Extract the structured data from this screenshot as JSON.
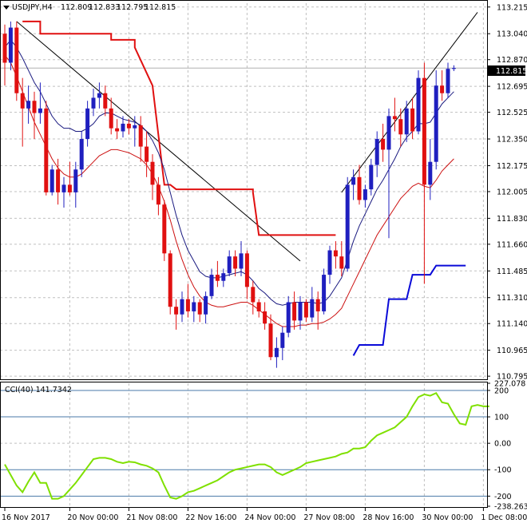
{
  "colors": {
    "background": "#ffffff",
    "grid": "#c0c0c0",
    "frame": "#000000",
    "bull_candle": "#1f1fbf",
    "bear_candle": "#e01010",
    "fast_ma": "#1a1a80",
    "slow_ma": "#cc1010",
    "trailing_stop_upper": "#e01010",
    "trailing_stop_lower": "#0a0ad8",
    "trend_line": "#000000",
    "cci": "#7fe000",
    "current_price_line": "#b0b0b0"
  },
  "chart_data": [
    {
      "type": "candlestick",
      "title": "USDJPY,H4",
      "ohlc_header": {
        "open": "112.809",
        "high": "112.833",
        "low": "112.795",
        "close": "112.815"
      },
      "current_price_label": "112.815",
      "ylim": [
        110.78,
        113.24
      ],
      "y_ticks": [
        "113.215",
        "113.040",
        "112.870",
        "112.695",
        "112.525",
        "112.350",
        "112.175",
        "112.005",
        "111.830",
        "111.660",
        "111.485",
        "111.310",
        "111.140",
        "110.965",
        "110.795"
      ],
      "x_ticks": [
        "16 Nov 2017",
        "20 Nov 00:00",
        "21 Nov 08:00",
        "22 Nov 16:00",
        "24 Nov 00:00",
        "27 Nov 08:00",
        "28 Nov 16:00",
        "30 Nov 00:00",
        "1 Dec 08:00"
      ],
      "x_tick_bar_index": [
        0,
        11,
        21,
        31,
        41,
        51,
        61,
        71,
        81
      ],
      "bars": [
        {
          "o": 113.04,
          "h": 113.1,
          "l": 112.7,
          "c": 112.85
        },
        {
          "o": 112.85,
          "h": 113.12,
          "l": 112.8,
          "c": 113.08
        },
        {
          "o": 113.08,
          "h": 113.12,
          "l": 112.6,
          "c": 112.65
        },
        {
          "o": 112.65,
          "h": 112.75,
          "l": 112.3,
          "c": 112.55
        },
        {
          "o": 112.55,
          "h": 112.7,
          "l": 112.45,
          "c": 112.6
        },
        {
          "o": 112.6,
          "h": 112.66,
          "l": 112.35,
          "c": 112.52
        },
        {
          "o": 112.52,
          "h": 112.72,
          "l": 112.45,
          "c": 112.55
        },
        {
          "o": 112.55,
          "h": 112.6,
          "l": 111.98,
          "c": 112.0
        },
        {
          "o": 112.0,
          "h": 112.18,
          "l": 111.98,
          "c": 112.15
        },
        {
          "o": 112.15,
          "h": 112.22,
          "l": 111.92,
          "c": 112.0
        },
        {
          "o": 112.0,
          "h": 112.1,
          "l": 111.9,
          "c": 112.05
        },
        {
          "o": 112.05,
          "h": 112.2,
          "l": 111.98,
          "c": 112.0
        },
        {
          "o": 112.0,
          "h": 112.2,
          "l": 111.9,
          "c": 112.15
        },
        {
          "o": 112.15,
          "h": 112.4,
          "l": 112.1,
          "c": 112.35
        },
        {
          "o": 112.35,
          "h": 112.6,
          "l": 112.3,
          "c": 112.55
        },
        {
          "o": 112.55,
          "h": 112.68,
          "l": 112.5,
          "c": 112.62
        },
        {
          "o": 112.62,
          "h": 112.72,
          "l": 112.55,
          "c": 112.65
        },
        {
          "o": 112.65,
          "h": 112.7,
          "l": 112.5,
          "c": 112.55
        },
        {
          "o": 112.55,
          "h": 112.62,
          "l": 112.38,
          "c": 112.42
        },
        {
          "o": 112.42,
          "h": 112.48,
          "l": 112.35,
          "c": 112.4
        },
        {
          "o": 112.4,
          "h": 112.5,
          "l": 112.36,
          "c": 112.45
        },
        {
          "o": 112.45,
          "h": 112.48,
          "l": 112.38,
          "c": 112.42
        },
        {
          "o": 112.42,
          "h": 112.5,
          "l": 112.3,
          "c": 112.44
        },
        {
          "o": 112.44,
          "h": 112.5,
          "l": 112.2,
          "c": 112.3
        },
        {
          "o": 112.3,
          "h": 112.4,
          "l": 112.1,
          "c": 112.2
        },
        {
          "o": 112.2,
          "h": 112.25,
          "l": 111.95,
          "c": 112.05
        },
        {
          "o": 112.05,
          "h": 112.1,
          "l": 111.85,
          "c": 111.92
        },
        {
          "o": 111.92,
          "h": 111.95,
          "l": 111.55,
          "c": 111.6
        },
        {
          "o": 111.6,
          "h": 111.62,
          "l": 111.2,
          "c": 111.25
        },
        {
          "o": 111.25,
          "h": 111.3,
          "l": 111.1,
          "c": 111.2
        },
        {
          "o": 111.2,
          "h": 111.35,
          "l": 111.15,
          "c": 111.3
        },
        {
          "o": 111.3,
          "h": 111.4,
          "l": 111.18,
          "c": 111.22
        },
        {
          "o": 111.22,
          "h": 111.32,
          "l": 111.15,
          "c": 111.28
        },
        {
          "o": 111.28,
          "h": 111.3,
          "l": 111.15,
          "c": 111.2
        },
        {
          "o": 111.2,
          "h": 111.35,
          "l": 111.14,
          "c": 111.32
        },
        {
          "o": 111.32,
          "h": 111.5,
          "l": 111.3,
          "c": 111.46
        },
        {
          "o": 111.46,
          "h": 111.55,
          "l": 111.38,
          "c": 111.42
        },
        {
          "o": 111.42,
          "h": 111.5,
          "l": 111.38,
          "c": 111.47
        },
        {
          "o": 111.47,
          "h": 111.62,
          "l": 111.45,
          "c": 111.58
        },
        {
          "o": 111.58,
          "h": 111.62,
          "l": 111.45,
          "c": 111.5
        },
        {
          "o": 111.5,
          "h": 111.68,
          "l": 111.45,
          "c": 111.6
        },
        {
          "o": 111.6,
          "h": 111.62,
          "l": 111.3,
          "c": 111.38
        },
        {
          "o": 111.38,
          "h": 111.42,
          "l": 111.2,
          "c": 111.28
        },
        {
          "o": 111.28,
          "h": 111.3,
          "l": 111.18,
          "c": 111.22
        },
        {
          "o": 111.22,
          "h": 111.28,
          "l": 111.1,
          "c": 111.14
        },
        {
          "o": 111.14,
          "h": 111.2,
          "l": 110.9,
          "c": 110.92
        },
        {
          "o": 110.92,
          "h": 111.05,
          "l": 110.85,
          "c": 110.98
        },
        {
          "o": 110.98,
          "h": 111.12,
          "l": 110.9,
          "c": 111.08
        },
        {
          "o": 111.08,
          "h": 111.32,
          "l": 111.05,
          "c": 111.28
        },
        {
          "o": 111.28,
          "h": 111.35,
          "l": 111.1,
          "c": 111.16
        },
        {
          "o": 111.16,
          "h": 111.32,
          "l": 111.1,
          "c": 111.28
        },
        {
          "o": 111.28,
          "h": 111.3,
          "l": 111.15,
          "c": 111.18
        },
        {
          "o": 111.18,
          "h": 111.38,
          "l": 111.15,
          "c": 111.3
        },
        {
          "o": 111.3,
          "h": 111.35,
          "l": 111.1,
          "c": 111.22
        },
        {
          "o": 111.22,
          "h": 111.5,
          "l": 111.2,
          "c": 111.46
        },
        {
          "o": 111.46,
          "h": 111.65,
          "l": 111.4,
          "c": 111.62
        },
        {
          "o": 111.62,
          "h": 111.68,
          "l": 111.5,
          "c": 111.58
        },
        {
          "o": 111.58,
          "h": 111.68,
          "l": 111.45,
          "c": 111.5
        },
        {
          "o": 111.5,
          "h": 112.1,
          "l": 111.48,
          "c": 112.05
        },
        {
          "o": 112.05,
          "h": 112.15,
          "l": 111.95,
          "c": 112.1
        },
        {
          "o": 112.1,
          "h": 112.18,
          "l": 111.92,
          "c": 111.95
        },
        {
          "o": 111.95,
          "h": 112.05,
          "l": 111.9,
          "c": 112.02
        },
        {
          "o": 112.02,
          "h": 112.22,
          "l": 111.98,
          "c": 112.18
        },
        {
          "o": 112.18,
          "h": 112.4,
          "l": 112.1,
          "c": 112.35
        },
        {
          "o": 112.35,
          "h": 112.45,
          "l": 112.2,
          "c": 112.28
        },
        {
          "o": 112.28,
          "h": 112.55,
          "l": 111.7,
          "c": 112.5
        },
        {
          "o": 112.5,
          "h": 112.62,
          "l": 112.4,
          "c": 112.48
        },
        {
          "o": 112.48,
          "h": 112.55,
          "l": 112.3,
          "c": 112.38
        },
        {
          "o": 112.38,
          "h": 112.6,
          "l": 112.33,
          "c": 112.55
        },
        {
          "o": 112.55,
          "h": 112.62,
          "l": 112.35,
          "c": 112.4
        },
        {
          "o": 112.4,
          "h": 112.8,
          "l": 112.38,
          "c": 112.75
        },
        {
          "o": 112.75,
          "h": 112.85,
          "l": 111.4,
          "c": 112.05
        },
        {
          "o": 112.05,
          "h": 112.35,
          "l": 111.95,
          "c": 112.2
        },
        {
          "o": 112.2,
          "h": 112.8,
          "l": 112.15,
          "c": 112.7
        },
        {
          "o": 112.7,
          "h": 112.8,
          "l": 112.6,
          "c": 112.65
        },
        {
          "o": 112.65,
          "h": 112.85,
          "l": 112.62,
          "c": 112.81
        },
        {
          "o": 112.809,
          "h": 112.833,
          "l": 112.795,
          "c": 112.815
        }
      ],
      "fast_ma": [
        112.95,
        113.0,
        112.95,
        112.88,
        112.8,
        112.72,
        112.66,
        112.58,
        112.5,
        112.45,
        112.42,
        112.42,
        112.4,
        112.4,
        112.42,
        112.45,
        112.5,
        112.52,
        112.52,
        112.5,
        112.48,
        112.47,
        112.46,
        112.44,
        112.4,
        112.34,
        112.26,
        112.15,
        112.0,
        111.85,
        111.72,
        111.62,
        111.55,
        111.48,
        111.45,
        111.44,
        111.44,
        111.45,
        111.46,
        111.47,
        111.48,
        111.46,
        111.42,
        111.37,
        111.34,
        111.3,
        111.27,
        111.26,
        111.27,
        111.28,
        111.28,
        111.28,
        111.28,
        111.27,
        111.28,
        111.32,
        111.38,
        111.44,
        111.56,
        111.68,
        111.78,
        111.86,
        111.94,
        112.02,
        112.08,
        112.15,
        112.22,
        112.3,
        112.36,
        112.4,
        112.45,
        112.45,
        112.46,
        112.52,
        112.58,
        112.62,
        112.66
      ],
      "slow_ma": [
        112.9,
        112.85,
        112.76,
        112.66,
        112.56,
        112.46,
        112.38,
        112.3,
        112.22,
        112.16,
        112.12,
        112.1,
        112.1,
        112.12,
        112.16,
        112.2,
        112.24,
        112.26,
        112.28,
        112.28,
        112.27,
        112.26,
        112.24,
        112.22,
        112.18,
        112.12,
        112.04,
        111.94,
        111.82,
        111.68,
        111.56,
        111.46,
        111.38,
        111.32,
        111.28,
        111.26,
        111.25,
        111.25,
        111.26,
        111.27,
        111.28,
        111.28,
        111.26,
        111.23,
        111.2,
        111.17,
        111.14,
        111.12,
        111.12,
        111.12,
        111.13,
        111.13,
        111.14,
        111.14,
        111.15,
        111.17,
        111.2,
        111.24,
        111.32,
        111.4,
        111.48,
        111.56,
        111.64,
        111.72,
        111.78,
        111.84,
        111.9,
        111.96,
        112.0,
        112.04,
        112.06,
        112.04,
        112.03,
        112.08,
        112.14,
        112.18,
        112.22
      ],
      "trailing_stop_upper": [
        {
          "i": 3,
          "v": 113.12
        },
        {
          "i": 6,
          "v": 113.12
        },
        {
          "i": 6,
          "v": 113.04
        },
        {
          "i": 18,
          "v": 113.04
        },
        {
          "i": 18,
          "v": 113.0
        },
        {
          "i": 22,
          "v": 113.0
        },
        {
          "i": 22,
          "v": 112.95
        },
        {
          "i": 25,
          "v": 112.7
        },
        {
          "i": 27,
          "v": 112.05
        },
        {
          "i": 28,
          "v": 112.05
        },
        {
          "i": 29,
          "v": 112.02
        },
        {
          "i": 42,
          "v": 112.02
        },
        {
          "i": 42,
          "v": 112.0
        },
        {
          "i": 43,
          "v": 111.72
        },
        {
          "i": 56,
          "v": 111.72
        }
      ],
      "trailing_stop_lower": [
        {
          "i": 59,
          "v": 110.93
        },
        {
          "i": 60,
          "v": 111.0
        },
        {
          "i": 64,
          "v": 111.0
        },
        {
          "i": 65,
          "v": 111.3
        },
        {
          "i": 68,
          "v": 111.3
        },
        {
          "i": 69,
          "v": 111.46
        },
        {
          "i": 72,
          "v": 111.46
        },
        {
          "i": 73,
          "v": 111.52
        },
        {
          "i": 78,
          "v": 111.52
        }
      ],
      "trend_lines": [
        {
          "i1": 2,
          "v1": 113.12,
          "i2": 50,
          "v2": 111.55
        },
        {
          "i1": 57,
          "v1": 112.0,
          "i2": 80,
          "v2": 113.18
        }
      ]
    },
    {
      "type": "line",
      "title": "CCI(40) 141.7342",
      "ylim": [
        -238.2636,
        227.078
      ],
      "y_ticks": [
        "227.078",
        "200",
        "100",
        "0.00",
        "-100",
        "-200",
        "-238.2636"
      ],
      "levels": [
        200,
        100,
        0,
        -100,
        -200
      ],
      "dashed_levels": [
        200,
        100,
        -100,
        -200
      ],
      "series": [
        {
          "values": [
            -80,
            -120,
            -160,
            -185,
            -145,
            -110,
            -150,
            -150,
            -210,
            -210,
            -200,
            -175,
            -150,
            -120,
            -90,
            -60,
            -55,
            -55,
            -60,
            -70,
            -75,
            -70,
            -72,
            -80,
            -85,
            -95,
            -110,
            -160,
            -205,
            -210,
            -200,
            -185,
            -180,
            -170,
            -160,
            -150,
            -140,
            -125,
            -110,
            -100,
            -95,
            -90,
            -85,
            -80,
            -80,
            -90,
            -110,
            -120,
            -110,
            -100,
            -90,
            -75,
            -70,
            -65,
            -60,
            -55,
            -50,
            -40,
            -35,
            -20,
            -20,
            -15,
            10,
            30,
            40,
            50,
            60,
            80,
            100,
            140,
            175,
            185,
            180,
            190,
            155,
            150,
            110,
            75,
            70,
            140,
            145,
            140,
            140
          ]
        }
      ]
    }
  ]
}
